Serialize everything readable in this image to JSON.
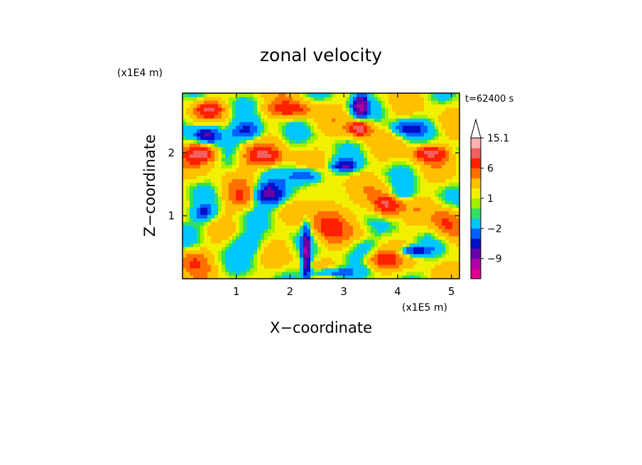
{
  "chart_data": {
    "type": "heatmap",
    "title": "zonal velocity",
    "xlabel": "X−coordinate",
    "ylabel": "Z−coordinate",
    "x_unit": "(x1E5 m)",
    "y_unit": "(x1E4 m)",
    "time_label": "t=62400 s",
    "xlim": [
      0,
      5.15
    ],
    "ylim": [
      0,
      2.95
    ],
    "x_ticks": [
      {
        "value": 1,
        "label": "1"
      },
      {
        "value": 2,
        "label": "2"
      },
      {
        "value": 3,
        "label": "3"
      },
      {
        "value": 4,
        "label": "4"
      },
      {
        "value": 5,
        "label": "5"
      }
    ],
    "y_ticks": [
      {
        "value": 1,
        "label": "1"
      },
      {
        "value": 2,
        "label": "2"
      }
    ],
    "colorbar": {
      "levels": [
        -15,
        -12,
        -9,
        -6,
        -4,
        -2,
        0,
        0.5,
        1,
        2,
        4,
        6,
        9,
        12,
        15.1
      ],
      "labels": [
        {
          "value": 15.1,
          "label": "15.1"
        },
        {
          "value": 6,
          "label": "6"
        },
        {
          "value": 1,
          "label": "1"
        },
        {
          "value": -2,
          "label": "−2"
        },
        {
          "value": -9,
          "label": "−9"
        }
      ],
      "colors": [
        "#e0008e",
        "#b000a8",
        "#6a00a8",
        "#0010c8",
        "#0060ff",
        "#00c8ff",
        "#30e060",
        "#a0f000",
        "#f0f000",
        "#ffc000",
        "#ff7000",
        "#ff2000",
        "#f06060",
        "#ffb0b0"
      ]
    },
    "field_regions": [
      {
        "x": 0.45,
        "z": 2.3,
        "v": -9,
        "sx": 0.25,
        "sz": 0.15
      },
      {
        "x": 1.2,
        "z": 2.35,
        "v": -7,
        "sx": 0.3,
        "sz": 0.15
      },
      {
        "x": 1.6,
        "z": 1.35,
        "v": -9,
        "sx": 0.3,
        "sz": 0.18
      },
      {
        "x": 2.3,
        "z": 1.65,
        "v": -6,
        "sx": 0.3,
        "sz": 0.12
      },
      {
        "x": 3.3,
        "z": 2.75,
        "v": -10,
        "sx": 0.15,
        "sz": 0.2
      },
      {
        "x": 3.0,
        "z": 1.8,
        "v": -7,
        "sx": 0.25,
        "sz": 0.1
      },
      {
        "x": 4.2,
        "z": 2.4,
        "v": -6,
        "sx": 0.3,
        "sz": 0.12
      },
      {
        "x": 4.0,
        "z": 1.35,
        "v": -4,
        "sx": 0.3,
        "sz": 0.12
      },
      {
        "x": 4.3,
        "z": 0.45,
        "v": -7,
        "sx": 0.3,
        "sz": 0.08
      },
      {
        "x": 2.3,
        "z": 0.4,
        "v": -10,
        "sx": 0.08,
        "sz": 0.45
      },
      {
        "x": 2.8,
        "z": 0.1,
        "v": -6,
        "sx": 0.4,
        "sz": 0.08
      },
      {
        "x": 0.4,
        "z": 1.05,
        "v": -5,
        "sx": 0.2,
        "sz": 0.12
      },
      {
        "x": 1.2,
        "z": 0.55,
        "v": -3,
        "sx": 0.4,
        "sz": 0.2
      },
      {
        "x": 0.3,
        "z": 0.9,
        "v": -1,
        "sx": 0.4,
        "sz": 0.3
      },
      {
        "x": 3.4,
        "z": 0.5,
        "v": -2,
        "sx": 0.3,
        "sz": 0.15
      },
      {
        "x": 2.05,
        "z": 1.3,
        "v": -1,
        "sx": 0.3,
        "sz": 0.2
      },
      {
        "x": 0.35,
        "z": 2.0,
        "v": 9,
        "sx": 0.3,
        "sz": 0.15
      },
      {
        "x": 0.5,
        "z": 2.7,
        "v": 7,
        "sx": 0.25,
        "sz": 0.12
      },
      {
        "x": 2.0,
        "z": 2.7,
        "v": 6,
        "sx": 0.4,
        "sz": 0.12
      },
      {
        "x": 1.5,
        "z": 1.95,
        "v": 8,
        "sx": 0.35,
        "sz": 0.15
      },
      {
        "x": 3.3,
        "z": 2.4,
        "v": 10,
        "sx": 0.2,
        "sz": 0.12
      },
      {
        "x": 4.6,
        "z": 2.0,
        "v": 8,
        "sx": 0.3,
        "sz": 0.12
      },
      {
        "x": 3.8,
        "z": 1.2,
        "v": 9,
        "sx": 0.25,
        "sz": 0.2
      },
      {
        "x": 3.7,
        "z": 0.3,
        "v": 6,
        "sx": 0.3,
        "sz": 0.15
      },
      {
        "x": 2.7,
        "z": 0.8,
        "v": 5,
        "sx": 0.3,
        "sz": 0.25
      },
      {
        "x": 1.1,
        "z": 1.3,
        "v": 4,
        "sx": 0.3,
        "sz": 0.2
      },
      {
        "x": 0.2,
        "z": 0.3,
        "v": 4,
        "sx": 0.3,
        "sz": 0.2
      },
      {
        "x": 4.9,
        "z": 0.9,
        "v": 5,
        "sx": 0.25,
        "sz": 0.25
      },
      {
        "x": 2.7,
        "z": 1.2,
        "v": 3,
        "sx": 0.3,
        "sz": 0.3
      }
    ]
  }
}
